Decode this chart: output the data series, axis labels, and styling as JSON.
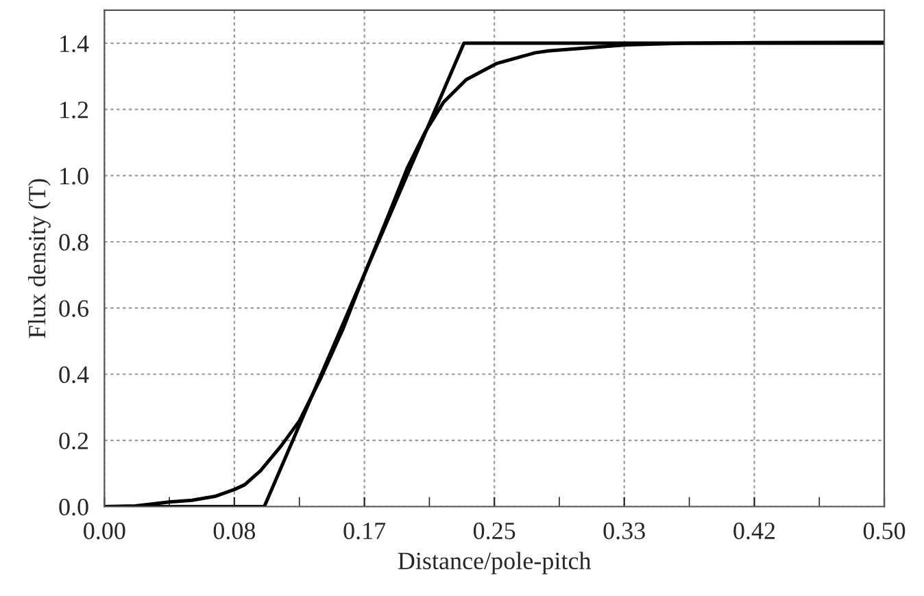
{
  "chart_data": {
    "type": "line",
    "xlabel": "Distance/pole-pitch",
    "ylabel": "Flux density (T)",
    "xlim": [
      0,
      0.5
    ],
    "ylim": [
      0,
      1.5
    ],
    "xticks": [
      {
        "value": 0,
        "label": "0.00"
      },
      {
        "value": 0.0833,
        "label": "0.08"
      },
      {
        "value": 0.1667,
        "label": "0.17"
      },
      {
        "value": 0.25,
        "label": "0.25"
      },
      {
        "value": 0.3333,
        "label": "0.33"
      },
      {
        "value": 0.4167,
        "label": "0.42"
      },
      {
        "value": 0.5,
        "label": "0.50"
      }
    ],
    "yticks": [
      {
        "value": 0,
        "label": "0.0"
      },
      {
        "value": 0.2,
        "label": "0.2"
      },
      {
        "value": 0.4,
        "label": "0.4"
      },
      {
        "value": 0.6,
        "label": "0.6"
      },
      {
        "value": 0.8,
        "label": "0.8"
      },
      {
        "value": 1.0,
        "label": "1.0"
      },
      {
        "value": 1.2,
        "label": "1.2"
      },
      {
        "value": 1.4,
        "label": "1.4"
      }
    ],
    "grid": true,
    "marker": "none",
    "line_style": "solid",
    "series": [
      {
        "color": "#000000",
        "x": [
          0,
          0.1025,
          0.2305,
          0.5
        ],
        "values": [
          0,
          0,
          1.4,
          1.4
        ]
      },
      {
        "color": "#000000",
        "x": [
          0,
          0.02,
          0.0416,
          0.0562,
          0.0709,
          0.0835,
          0.0899,
          0.1,
          0.1134,
          0.125,
          0.1383,
          0.1529,
          0.1667,
          0.1822,
          0.194,
          0.2056,
          0.2173,
          0.232,
          0.2516,
          0.276,
          0.2847,
          0.3345,
          0.3726,
          0.42,
          0.5
        ],
        "values": [
          0,
          0.002,
          0.014,
          0.019,
          0.031,
          0.052,
          0.066,
          0.108,
          0.184,
          0.259,
          0.384,
          0.536,
          0.702,
          0.882,
          1.021,
          1.131,
          1.221,
          1.29,
          1.339,
          1.371,
          1.377,
          1.395,
          1.4,
          1.402,
          1.403
        ]
      }
    ]
  }
}
